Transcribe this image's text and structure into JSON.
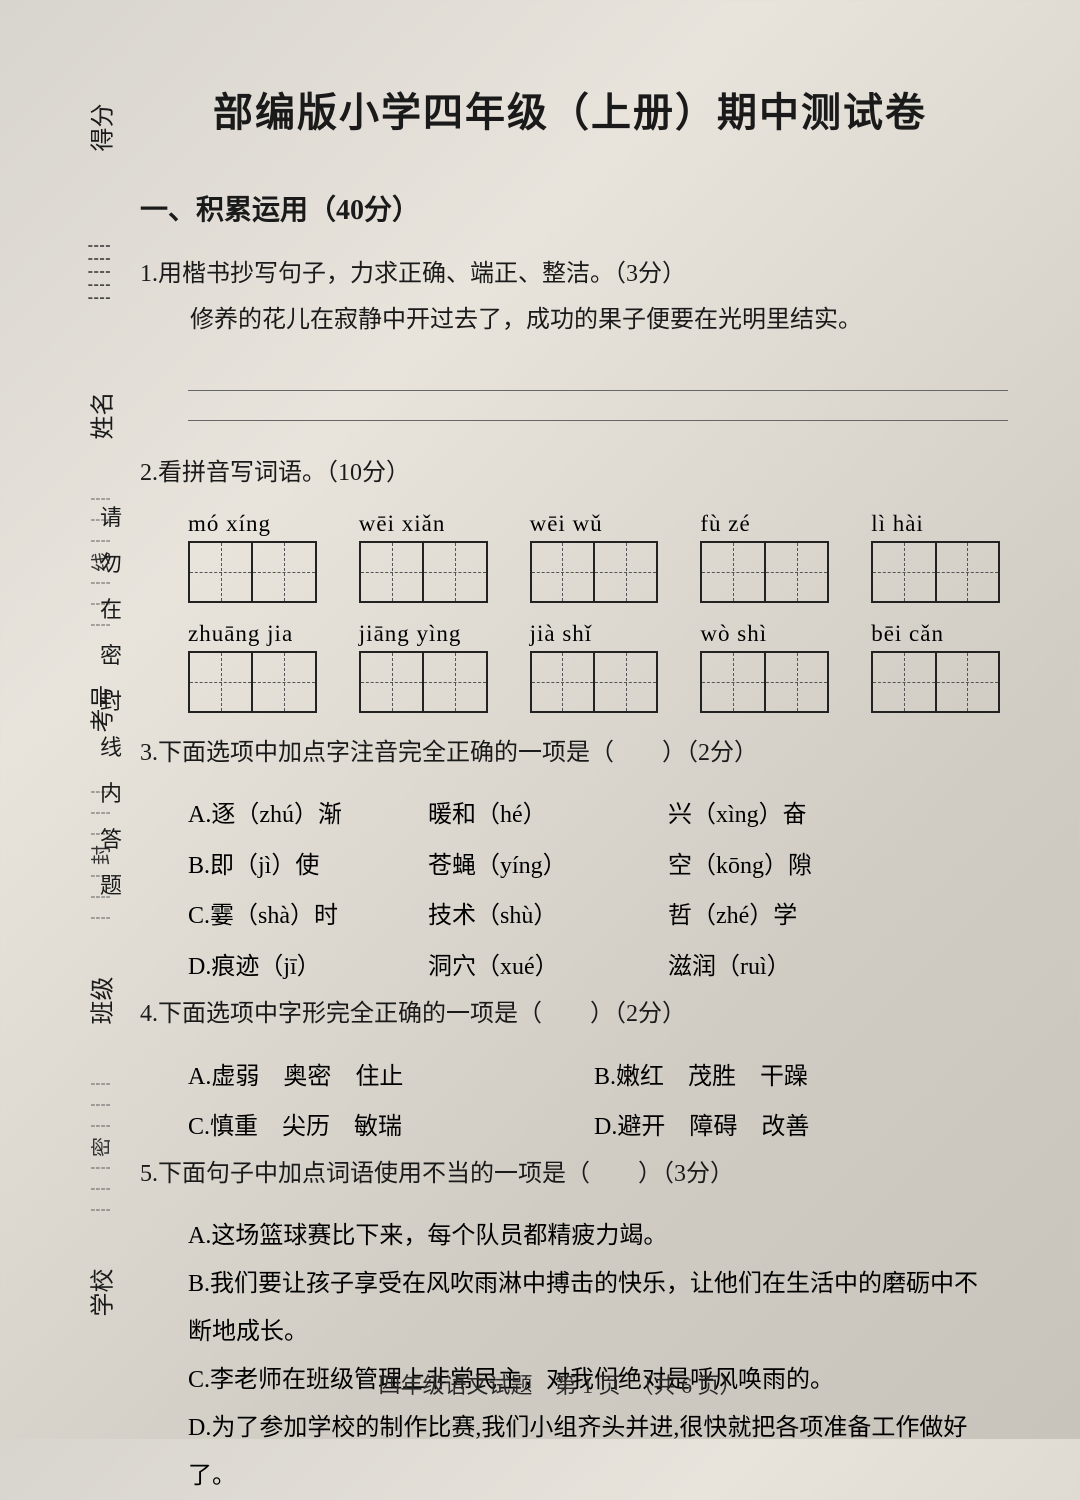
{
  "title": "部编版小学四年级（上册）期中测试卷",
  "section1": {
    "header": "一、积累运用（40分）",
    "q1": {
      "prompt": "1.用楷书抄写句子，力求正确、端正、整洁。（3分）",
      "sentence": "修养的花儿在寂静中开过去了，成功的果子便要在光明里结实。"
    },
    "q2": {
      "prompt": "2.看拼音写词语。（10分）",
      "row1": [
        "mó  xíng",
        "wēi  xiǎn",
        "wēi  wǔ",
        "fù  zé",
        "lì  hài"
      ],
      "row2": [
        "zhuāng  jia",
        "jiāng  yìng",
        "jià  shǐ",
        "wò  shì",
        "bēi  cǎn"
      ]
    },
    "q3": {
      "prompt": "3.下面选项中加点字注音完全正确的一项是（　　）（2分）",
      "options": [
        [
          "A.逐（zhú）渐",
          "暖和（hé）",
          "兴（xìng）奋"
        ],
        [
          "B.即（jì）使",
          "苍蝇（yíng）",
          "空（kōng）隙"
        ],
        [
          "C.霎（shà）时",
          "技术（shù）",
          "哲（zhé）学"
        ],
        [
          "D.痕迹（jī）",
          "洞穴（xué）",
          "滋润（ruì）"
        ]
      ]
    },
    "q4": {
      "prompt": "4.下面选项中字形完全正确的一项是（　　）（2分）",
      "options": [
        "A.虚弱　奥密　住止",
        "B.嫩红　茂胜　干躁",
        "C.慎重　尖历　敏瑞",
        "D.避开　障碍　改善"
      ]
    },
    "q5": {
      "prompt": "5.下面句子中加点词语使用不当的一项是（　　）（3分）",
      "options": [
        "A.这场篮球赛比下来，每个队员都精疲力竭。",
        "B.我们要让孩子享受在风吹雨淋中搏击的快乐，让他们在生活中的磨砺中不断地成长。",
        "C.李老师在班级管理上非常民主，对我们绝对是呼风唤雨的。",
        "D.为了参加学校的制作比赛,我们小组齐头并进,很快就把各项准备工作做好了。"
      ]
    }
  },
  "sidebar": {
    "labels": [
      "得分",
      "姓名",
      "考号",
      "班级",
      "学校"
    ],
    "seal_text": "请勿在密封线内答题",
    "markers": [
      "线",
      "封",
      "密"
    ]
  },
  "footer": "四年级语文试题　第 1 页　（共 6 页）",
  "colors": {
    "text": "#1a1a1a",
    "border": "#222222",
    "dash": "#555555"
  }
}
